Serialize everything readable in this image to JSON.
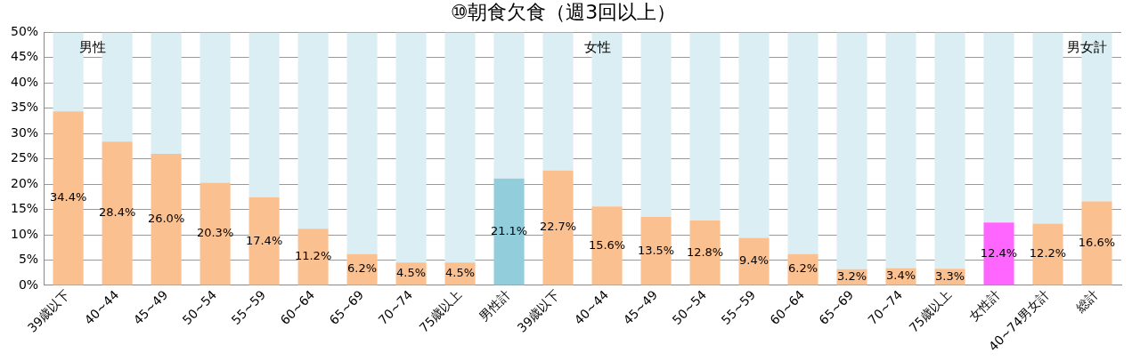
{
  "chart_data": {
    "type": "bar",
    "title": "⑩朝食欠食（週3回以上）",
    "stacked": true,
    "categories": [
      "39歳以下",
      "40~44",
      "45~49",
      "50~54",
      "55~59",
      "60~64",
      "65~69",
      "70~74",
      "75歳以上",
      "男性計",
      "39歳以下",
      "40~44",
      "45~49",
      "50~54",
      "55~59",
      "60~64",
      "65~69",
      "70~74",
      "75歳以上",
      "女性計",
      "40~74男女計",
      "総計"
    ],
    "series": [
      {
        "colors": [
          "#fac090",
          "#fac090",
          "#fac090",
          "#fac090",
          "#fac090",
          "#fac090",
          "#fac090",
          "#fac090",
          "#fac090",
          "#92cddc",
          "#fac090",
          "#fac090",
          "#fac090",
          "#fac090",
          "#fac090",
          "#fac090",
          "#fac090",
          "#fac090",
          "#fac090",
          "#ff66ff",
          "#fac090",
          "#fac090"
        ],
        "values": [
          34.4,
          28.4,
          26.0,
          20.3,
          17.4,
          11.2,
          6.2,
          4.5,
          4.5,
          21.1,
          22.7,
          15.6,
          13.5,
          12.8,
          9.4,
          6.2,
          3.2,
          3.4,
          3.3,
          12.4,
          12.2,
          16.6
        ],
        "value_labels": [
          "34.4%",
          "28.4%",
          "26.0%",
          "20.3%",
          "17.4%",
          "11.2%",
          "6.2%",
          "4.5%",
          "4.5%",
          "21.1%",
          "22.7%",
          "15.6%",
          "13.5%",
          "12.8%",
          "9.4%",
          "6.2%",
          "3.2%",
          "3.4%",
          "3.3%",
          "12.4%",
          "12.2%",
          "16.6%"
        ]
      },
      {
        "color": "#daeef3",
        "values": [
          15.6,
          21.6,
          24.0,
          29.7,
          32.6,
          38.8,
          43.8,
          45.5,
          45.5,
          28.9,
          27.3,
          34.4,
          36.5,
          37.2,
          40.6,
          43.8,
          46.8,
          46.6,
          46.7,
          37.6,
          37.8,
          33.4
        ]
      }
    ],
    "ylim": [
      0,
      50
    ],
    "yticks": [
      {
        "value": 0,
        "label": "0%"
      },
      {
        "value": 5,
        "label": "5%"
      },
      {
        "value": 10,
        "label": "10%"
      },
      {
        "value": 15,
        "label": "15%"
      },
      {
        "value": 20,
        "label": "20%"
      },
      {
        "value": 25,
        "label": "25%"
      },
      {
        "value": 30,
        "label": "30%"
      },
      {
        "value": 35,
        "label": "35%"
      },
      {
        "value": 40,
        "label": "40%"
      },
      {
        "value": 45,
        "label": "45%"
      },
      {
        "value": 50,
        "label": "50%"
      }
    ],
    "grid": "y",
    "legend": false,
    "annotations": [
      "男性",
      "女性",
      "男女計"
    ]
  }
}
